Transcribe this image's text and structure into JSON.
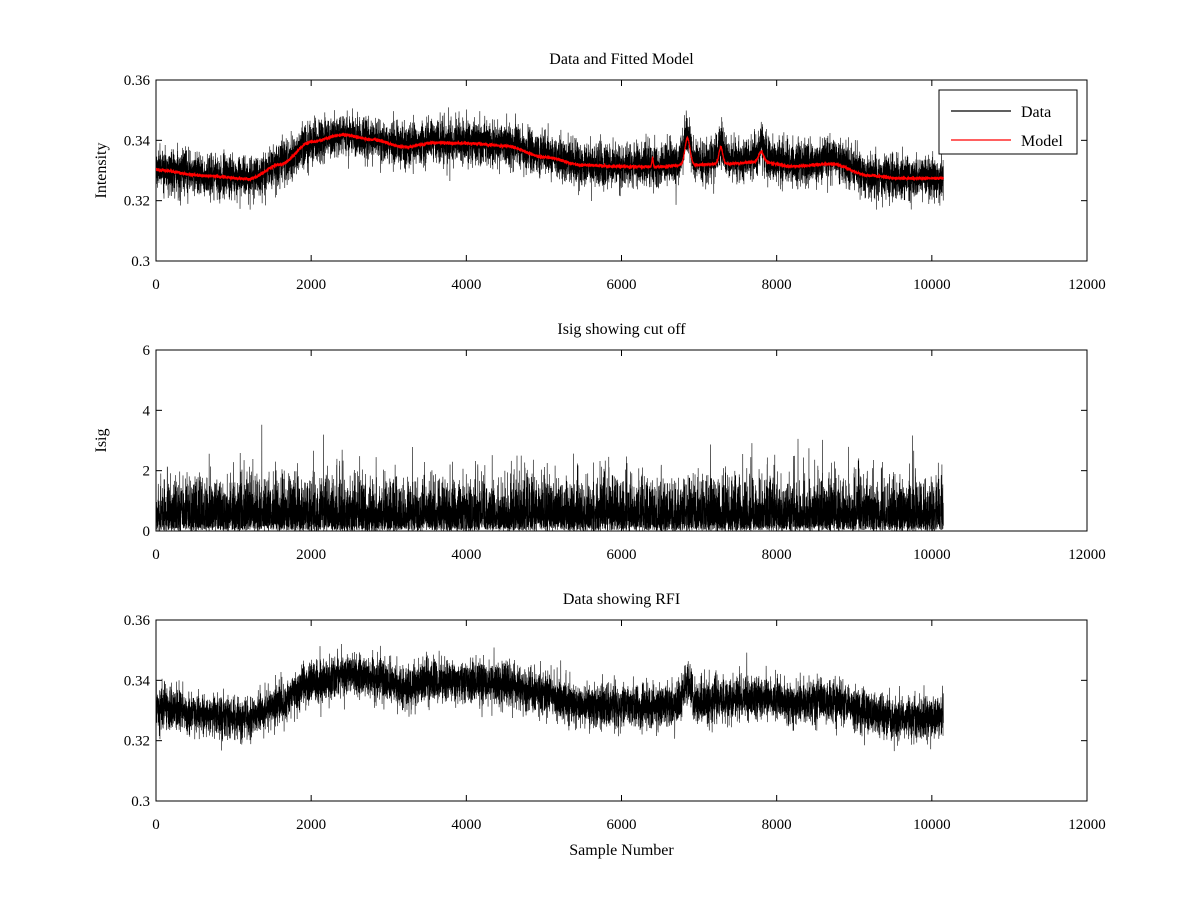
{
  "chart_data": [
    {
      "type": "line",
      "title": "Data and Fitted Model",
      "xlabel": "",
      "ylabel": "Intensity",
      "xlim": [
        0,
        12000
      ],
      "ylim": [
        0.3,
        0.36
      ],
      "xticks": [
        "0",
        "2000",
        "4000",
        "6000",
        "8000",
        "10000",
        "12000"
      ],
      "yticks": [
        "0.3",
        "0.32",
        "0.34",
        "0.36"
      ],
      "legend_position": "top-right",
      "series": [
        {
          "name": "Data",
          "color": "#000000",
          "style": "noisy",
          "n_points": 10150,
          "noise_sd": 0.0035,
          "trend": [
            [
              0,
              0.3305
            ],
            [
              600,
              0.3285
            ],
            [
              1200,
              0.3275
            ],
            [
              1600,
              0.3325
            ],
            [
              2000,
              0.339
            ],
            [
              2400,
              0.342
            ],
            [
              2800,
              0.3405
            ],
            [
              3200,
              0.338
            ],
            [
              3600,
              0.3395
            ],
            [
              4000,
              0.3395
            ],
            [
              4500,
              0.3385
            ],
            [
              5000,
              0.3355
            ],
            [
              5500,
              0.332
            ],
            [
              6000,
              0.3315
            ],
            [
              6400,
              0.3315
            ],
            [
              6880,
              0.3325
            ],
            [
              7300,
              0.3335
            ],
            [
              7800,
              0.334
            ],
            [
              8200,
              0.3325
            ],
            [
              8700,
              0.3335
            ],
            [
              9200,
              0.3285
            ],
            [
              9600,
              0.3275
            ],
            [
              10150,
              0.3275
            ]
          ],
          "peaks": [
            [
              6850,
              0.011,
              60
            ],
            [
              7280,
              0.006,
              40
            ],
            [
              7800,
              0.004,
              50
            ]
          ]
        },
        {
          "name": "Model",
          "color": "#ff0000",
          "style": "smooth",
          "n_points": 10150,
          "trend": [
            [
              0,
              0.3302
            ],
            [
              600,
              0.3283
            ],
            [
              1200,
              0.3272
            ],
            [
              1600,
              0.332
            ],
            [
              2000,
              0.3395
            ],
            [
              2400,
              0.3418
            ],
            [
              2800,
              0.3402
            ],
            [
              3200,
              0.3378
            ],
            [
              3600,
              0.3392
            ],
            [
              4000,
              0.339
            ],
            [
              4500,
              0.3382
            ],
            [
              5000,
              0.3345
            ],
            [
              5500,
              0.3318
            ],
            [
              6000,
              0.3313
            ],
            [
              6400,
              0.3312
            ],
            [
              6880,
              0.3318
            ],
            [
              7300,
              0.3322
            ],
            [
              7800,
              0.3328
            ],
            [
              8200,
              0.3314
            ],
            [
              8700,
              0.3322
            ],
            [
              9200,
              0.3283
            ],
            [
              9600,
              0.3274
            ],
            [
              10150,
              0.3274
            ]
          ],
          "peaks": [
            [
              6400,
              0.003,
              12
            ],
            [
              6850,
              0.009,
              45
            ],
            [
              7280,
              0.0055,
              35
            ],
            [
              7800,
              0.0035,
              45
            ]
          ]
        }
      ]
    },
    {
      "type": "line",
      "title": "Isig showing cut off",
      "xlabel": "",
      "ylabel": "Isig",
      "xlim": [
        0,
        12000
      ],
      "ylim": [
        0,
        6
      ],
      "xticks": [
        "0",
        "2000",
        "4000",
        "6000",
        "8000",
        "10000",
        "12000"
      ],
      "yticks": [
        "0",
        "2",
        "4",
        "6"
      ],
      "series": [
        {
          "name": "Isig",
          "color": "#000000",
          "style": "abs-noise",
          "n_points": 10150,
          "scale": 0.8,
          "max_value": 3.8
        }
      ]
    },
    {
      "type": "line",
      "title": "Data showing RFI",
      "xlabel": "Sample Number",
      "ylabel": "",
      "xlim": [
        0,
        12000
      ],
      "ylim": [
        0.3,
        0.36
      ],
      "xticks": [
        "0",
        "2000",
        "4000",
        "6000",
        "8000",
        "10000",
        "12000"
      ],
      "yticks": [
        "0.3",
        "0.32",
        "0.34",
        "0.36"
      ],
      "series": [
        {
          "name": "Data",
          "color": "#000000",
          "style": "noisy",
          "n_points": 10150,
          "noise_sd": 0.0035,
          "trend": [
            [
              0,
              0.3305
            ],
            [
              600,
              0.3285
            ],
            [
              1200,
              0.3275
            ],
            [
              1600,
              0.3325
            ],
            [
              2000,
              0.339
            ],
            [
              2400,
              0.342
            ],
            [
              2800,
              0.3405
            ],
            [
              3200,
              0.338
            ],
            [
              3600,
              0.3395
            ],
            [
              4000,
              0.3395
            ],
            [
              4500,
              0.3385
            ],
            [
              5000,
              0.3355
            ],
            [
              5500,
              0.332
            ],
            [
              6000,
              0.3315
            ],
            [
              6400,
              0.3315
            ],
            [
              6880,
              0.3325
            ],
            [
              7300,
              0.3335
            ],
            [
              7800,
              0.334
            ],
            [
              8200,
              0.3325
            ],
            [
              8700,
              0.3335
            ],
            [
              9200,
              0.3285
            ],
            [
              9600,
              0.3275
            ],
            [
              10150,
              0.3275
            ]
          ],
          "peaks": [
            [
              6850,
              0.007,
              60
            ]
          ]
        }
      ]
    }
  ]
}
